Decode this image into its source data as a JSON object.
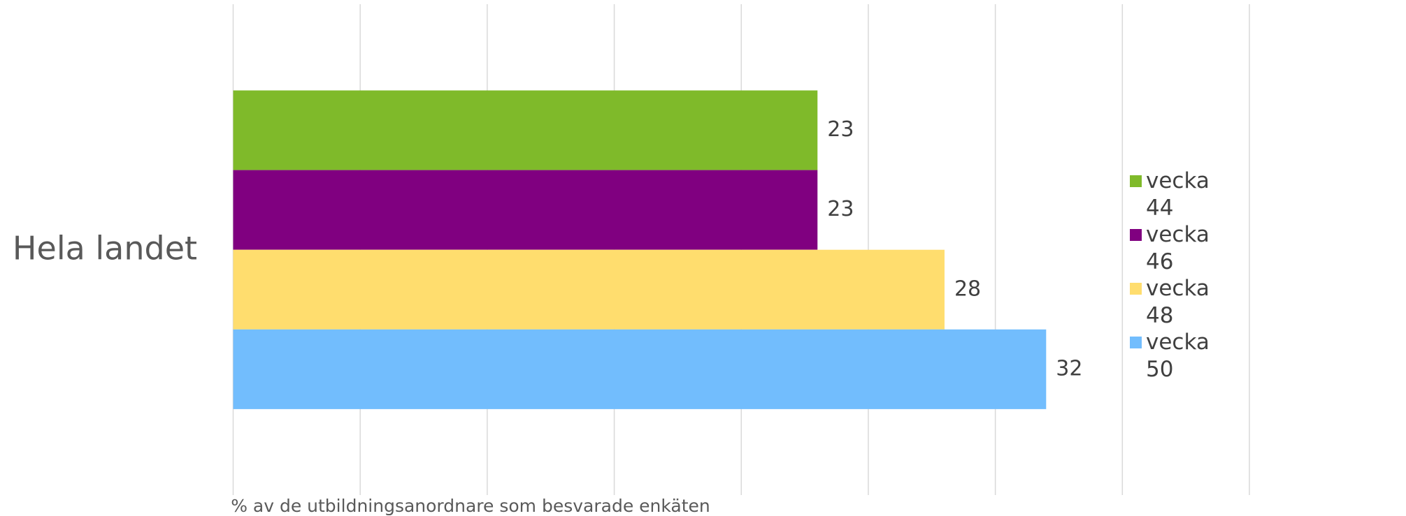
{
  "chart_data": {
    "type": "bar",
    "orientation": "horizontal",
    "categories": [
      "Hela landet"
    ],
    "series": [
      {
        "name": "vecka 44",
        "color": "#7fba2a",
        "values": [
          23
        ]
      },
      {
        "name": "vecka 46",
        "color": "#800080",
        "values": [
          23
        ]
      },
      {
        "name": "vecka 48",
        "color": "#ffdd6e",
        "values": [
          28
        ]
      },
      {
        "name": "vecka 50",
        "color": "#72bdfd",
        "values": [
          32
        ]
      }
    ],
    "x_label": "% av de utbildningsanordnare som besvarade enkäten",
    "xlim": [
      0,
      40
    ],
    "xticks": [
      0,
      5,
      10,
      15,
      20,
      25,
      30,
      35,
      40
    ],
    "grid": true,
    "legend": "right"
  }
}
